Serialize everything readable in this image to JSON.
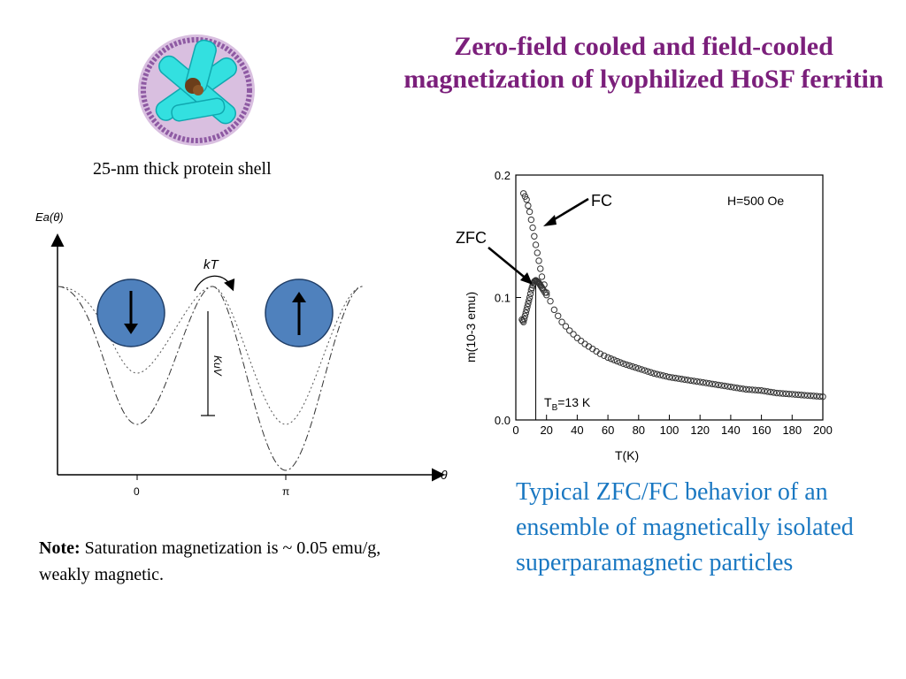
{
  "slide": {
    "title": "Zero-field cooled and field-cooled magnetization of lyophilized HoSF ferritin",
    "protein_caption": "25-nm thick protein shell",
    "note_label": "Note:",
    "note_text": "Saturation magnetization is ~ 0.05 emu/g, weakly magnetic.",
    "chart_caption": "Typical ZFC/FC behavior of an ensemble of magnetically isolated superparamagnetic particles"
  },
  "energy_diagram": {
    "y_axis_label": "Ea(θ)",
    "x_axis_label": "θ",
    "x_ticks": [
      "0",
      "π"
    ],
    "kt_label": "kT",
    "barrier_label": "KuV",
    "spin_down_color": "#4f81bd",
    "spin_up_color": "#4f81bd"
  },
  "chart_data": {
    "type": "scatter",
    "xlabel": "T(K)",
    "ylabel": "m(10-3 emu)",
    "xlim": [
      0,
      200
    ],
    "ylim": [
      0,
      0.2
    ],
    "x_ticks": [
      "0",
      "20",
      "40",
      "60",
      "80",
      "100",
      "120",
      "140",
      "160",
      "180",
      "200"
    ],
    "y_ticks": [
      "0.0",
      "0.1",
      "0.2"
    ],
    "annotations": {
      "field": "H=500 Oe",
      "fc": "FC",
      "zfc": "ZFC",
      "tb": "T",
      "tb_sub": "B",
      "tb_value": "=13 K"
    },
    "series": [
      {
        "name": "FC",
        "x": [
          5,
          7,
          9,
          11,
          13,
          15,
          17,
          20,
          25,
          30,
          35,
          40,
          45,
          50,
          55,
          60,
          70,
          80,
          90,
          100,
          110,
          120,
          130,
          140,
          150,
          160,
          170,
          180,
          190,
          200
        ],
        "y": [
          0.185,
          0.18,
          0.17,
          0.157,
          0.143,
          0.13,
          0.117,
          0.104,
          0.09,
          0.08,
          0.073,
          0.067,
          0.062,
          0.058,
          0.054,
          0.051,
          0.046,
          0.042,
          0.038,
          0.035,
          0.033,
          0.031,
          0.029,
          0.027,
          0.025,
          0.024,
          0.022,
          0.021,
          0.02,
          0.019
        ]
      },
      {
        "name": "ZFC",
        "x": [
          4,
          5,
          6,
          7,
          8,
          9,
          10,
          11,
          12,
          13,
          14,
          15,
          16,
          17,
          18,
          20
        ],
        "y": [
          0.082,
          0.08,
          0.085,
          0.09,
          0.095,
          0.1,
          0.106,
          0.11,
          0.113,
          0.114,
          0.113,
          0.112,
          0.11,
          0.108,
          0.106,
          0.102
        ]
      }
    ]
  }
}
